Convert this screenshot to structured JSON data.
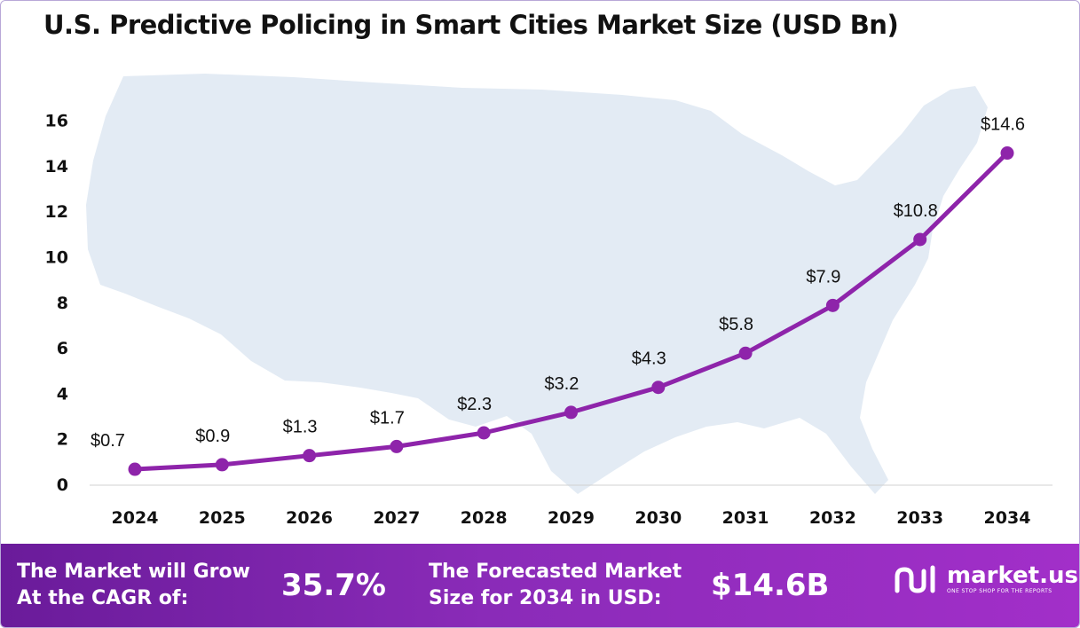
{
  "title": "U.S. Predictive Policing in Smart Cities Market Size (USD Bn)",
  "colors": {
    "line": "#8e24aa",
    "marker": "#8e24aa",
    "map": "#e3ebf4",
    "footer_start": "#6a1b9a",
    "footer_end": "#a22fc9"
  },
  "chart_data": {
    "type": "line",
    "title": "U.S. Predictive Policing in Smart Cities Market Size (USD Bn)",
    "xlabel": "",
    "ylabel": "",
    "categories": [
      "2024",
      "2025",
      "2026",
      "2027",
      "2028",
      "2029",
      "2030",
      "2031",
      "2032",
      "2033",
      "2034"
    ],
    "values": [
      0.7,
      0.9,
      1.3,
      1.7,
      2.3,
      3.2,
      4.3,
      5.8,
      7.9,
      10.8,
      14.6
    ],
    "data_labels": [
      "$0.7",
      "$0.9",
      "$1.3",
      "$1.7",
      "$2.3",
      "$3.2",
      "$4.3",
      "$5.8",
      "$7.9",
      "$10.8",
      "$14.6"
    ],
    "yticks": [
      0,
      2,
      4,
      6,
      8,
      10,
      12,
      14,
      16
    ],
    "ylim": [
      0,
      16
    ],
    "grid": false,
    "legend": "none",
    "background_icon": "usa-map"
  },
  "footer": {
    "cagr_label_line1": "The Market will Grow",
    "cagr_label_line2": "At the CAGR of:",
    "cagr_value": "35.7%",
    "forecast_label_line1": "The Forecasted Market",
    "forecast_label_line2": "Size for 2034 in USD:",
    "forecast_value": "$14.6B",
    "brand_name": "market.us",
    "brand_tagline": "ONE STOP SHOP FOR THE REPORTS",
    "brand_icon": "market-us-logo-icon"
  }
}
